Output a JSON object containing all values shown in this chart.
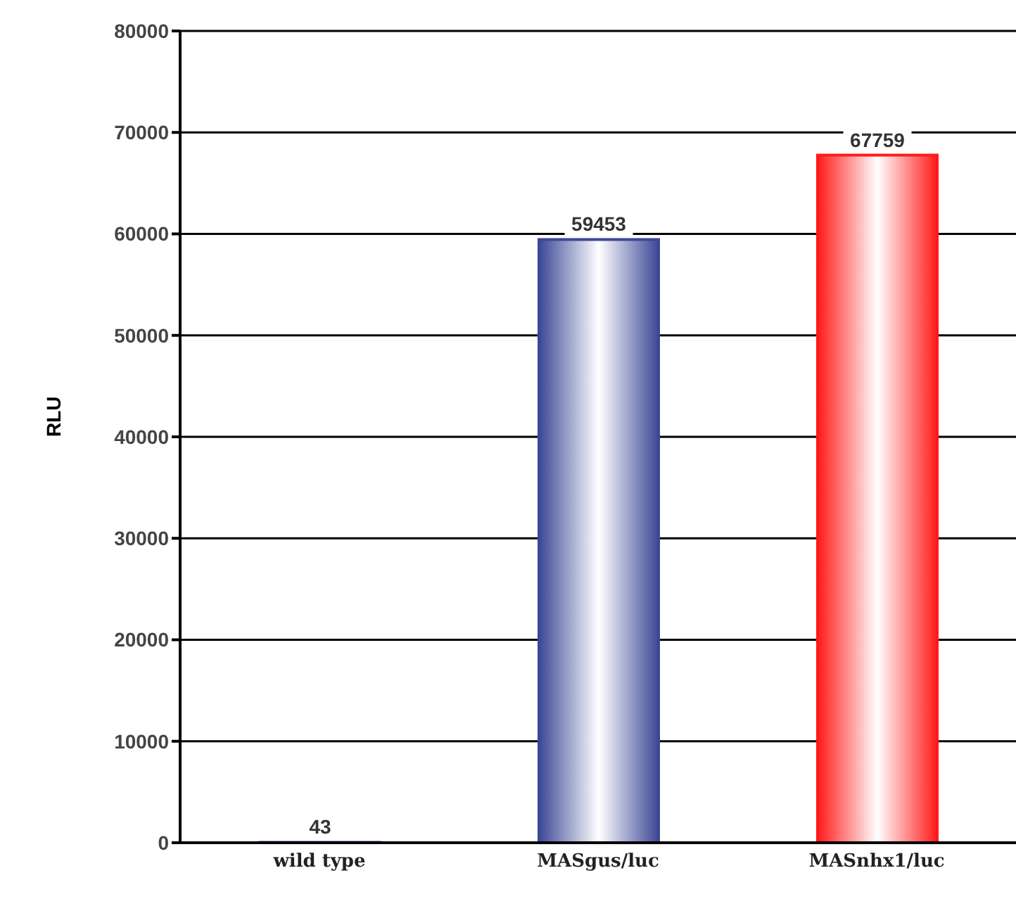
{
  "chart_data": {
    "type": "bar",
    "ylabel": "RLU",
    "categories": [
      "wild type",
      "MASgus/luc",
      "MASnhx1/luc"
    ],
    "values": [
      43,
      59453,
      67759
    ],
    "colors": [
      "#3c4896",
      "#3c4896",
      "#ff1a1a"
    ],
    "ylim": [
      0,
      80000
    ],
    "yticks": [
      0,
      10000,
      20000,
      30000,
      40000,
      50000,
      60000,
      70000,
      80000
    ],
    "grid": "y",
    "data_labels": true
  }
}
